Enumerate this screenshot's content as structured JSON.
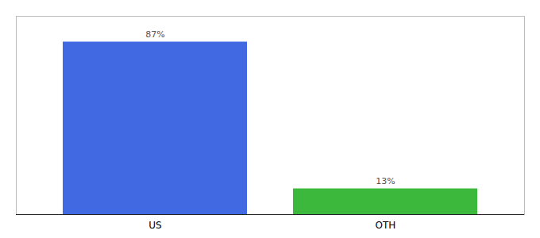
{
  "chart_data": {
    "type": "bar",
    "categories": [
      "US",
      "OTH"
    ],
    "values": [
      87,
      13
    ],
    "value_labels": [
      "87%",
      "13%"
    ],
    "colors": [
      "#4169e1",
      "#3cb83c"
    ],
    "ylim": [
      0,
      100
    ],
    "data_labels": true,
    "tick_labels": "x",
    "grid": false
  }
}
